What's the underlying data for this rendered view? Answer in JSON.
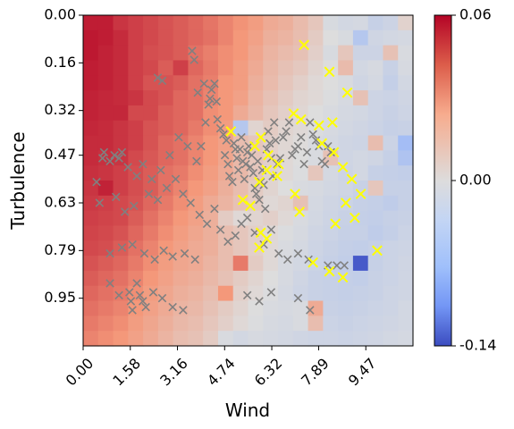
{
  "chart_data": {
    "type": "heatmap",
    "title": "",
    "xlabel": "Wind",
    "ylabel": "Turbulence",
    "xlim": [
      0,
      11.05
    ],
    "ylim": [
      0,
      1.11
    ],
    "x_tick_labels": [
      "0.00",
      "1.58",
      "3.16",
      "4.74",
      "6.32",
      "7.89",
      "9.47"
    ],
    "x_ticks": [
      0,
      1.58,
      3.16,
      4.74,
      6.32,
      7.89,
      9.47
    ],
    "y_tick_labels": [
      "0.00",
      "0.16",
      "0.32",
      "0.47",
      "0.63",
      "0.79",
      "0.95"
    ],
    "y_ticks": [
      0,
      0.16,
      0.32,
      0.47,
      0.63,
      0.79,
      0.95
    ],
    "y_inverted": true,
    "grid": false,
    "colormap": "coolwarm",
    "colorbar": {
      "min": -0.14,
      "max": 0.06,
      "center": 0.0,
      "tick_labels": [
        "0.06",
        "0.00",
        "-0.14"
      ],
      "ticks": [
        0.06,
        0.0,
        -0.14
      ]
    },
    "cells_rows": 22,
    "cells_cols": 22,
    "heatmap_values": [
      [
        0.055,
        0.055,
        0.05,
        0.048,
        0.046,
        0.044,
        0.042,
        0.04,
        0.037,
        0.034,
        0.031,
        0.028,
        0.022,
        0.02,
        0.015,
        0.01,
        -0.005,
        -0.01,
        -0.008,
        -0.02,
        -0.015,
        0.005
      ],
      [
        0.056,
        0.055,
        0.052,
        0.048,
        0.046,
        0.044,
        0.042,
        0.04,
        0.038,
        0.034,
        0.03,
        0.026,
        0.02,
        0.018,
        0.014,
        0.008,
        0.0,
        -0.005,
        -0.035,
        -0.012,
        -0.01,
        -0.008
      ],
      [
        0.056,
        0.054,
        0.052,
        0.048,
        0.045,
        0.044,
        0.042,
        0.038,
        0.035,
        0.032,
        0.03,
        0.024,
        0.018,
        0.015,
        0.012,
        0.006,
        -0.005,
        0.01,
        -0.015,
        -0.015,
        0.012,
        -0.004
      ],
      [
        0.055,
        0.054,
        0.052,
        0.048,
        0.046,
        0.042,
        0.048,
        0.04,
        0.036,
        0.032,
        0.028,
        0.022,
        0.016,
        0.012,
        0.009,
        0.004,
        0.0,
        0.015,
        -0.01,
        -0.006,
        -0.018,
        -0.006
      ],
      [
        0.055,
        0.054,
        0.052,
        0.048,
        0.044,
        0.044,
        0.042,
        0.038,
        0.035,
        0.03,
        0.028,
        0.02,
        0.015,
        0.01,
        0.006,
        0.002,
        0.0,
        -0.004,
        -0.012,
        -0.008,
        -0.022,
        -0.01
      ],
      [
        0.054,
        0.053,
        0.052,
        0.05,
        0.046,
        0.044,
        0.04,
        0.038,
        0.034,
        0.03,
        0.026,
        0.018,
        0.012,
        0.008,
        0.004,
        0.002,
        -0.002,
        -0.006,
        0.012,
        -0.014,
        -0.016,
        -0.012
      ],
      [
        0.054,
        0.053,
        0.053,
        0.046,
        0.046,
        0.042,
        0.04,
        0.038,
        0.032,
        0.03,
        0.022,
        0.016,
        0.01,
        0.006,
        0.003,
        0.0,
        -0.004,
        -0.008,
        -0.01,
        -0.014,
        -0.018,
        -0.014
      ],
      [
        0.053,
        0.052,
        0.05,
        0.048,
        0.044,
        0.042,
        0.04,
        0.036,
        0.032,
        0.028,
        -0.035,
        0.004,
        0.008,
        0.004,
        0.002,
        -0.002,
        -0.006,
        -0.01,
        -0.012,
        -0.016,
        -0.02,
        -0.018
      ],
      [
        0.052,
        0.052,
        0.05,
        0.048,
        0.044,
        0.04,
        0.038,
        0.034,
        0.03,
        0.026,
        0.014,
        0.01,
        0.006,
        0.003,
        0.001,
        -0.004,
        -0.008,
        -0.012,
        -0.014,
        0.014,
        -0.016,
        -0.05
      ],
      [
        0.052,
        0.051,
        0.05,
        0.046,
        0.043,
        0.04,
        0.038,
        0.034,
        0.03,
        0.024,
        0.016,
        0.01,
        0.006,
        0.002,
        0.0,
        -0.004,
        0.012,
        -0.012,
        -0.01,
        -0.012,
        -0.02,
        -0.04
      ],
      [
        0.051,
        0.05,
        0.048,
        0.045,
        0.042,
        0.038,
        0.036,
        0.032,
        0.028,
        0.022,
        0.016,
        0.01,
        0.004,
        0.002,
        -0.002,
        0.01,
        -0.008,
        -0.014,
        -0.01,
        -0.02,
        -0.022,
        -0.024
      ],
      [
        0.05,
        0.054,
        0.048,
        0.045,
        0.042,
        0.038,
        0.034,
        0.03,
        0.026,
        0.02,
        0.014,
        0.008,
        0.004,
        0.0,
        -0.004,
        -0.006,
        -0.01,
        -0.012,
        -0.018,
        0.01,
        -0.02,
        -0.02
      ],
      [
        0.049,
        0.048,
        0.046,
        0.044,
        0.04,
        0.036,
        0.032,
        0.028,
        0.022,
        0.018,
        0.012,
        0.008,
        0.002,
        0.004,
        0.012,
        -0.008,
        -0.012,
        -0.016,
        -0.02,
        -0.022,
        -0.026,
        -0.02
      ],
      [
        0.048,
        0.047,
        0.046,
        0.042,
        0.038,
        0.034,
        0.03,
        0.026,
        0.02,
        0.008,
        0.002,
        0.004,
        0.006,
        0.002,
        -0.004,
        -0.01,
        -0.014,
        -0.018,
        -0.022,
        -0.024,
        -0.02,
        -0.018
      ],
      [
        0.047,
        0.046,
        0.044,
        0.04,
        0.036,
        0.032,
        0.028,
        0.024,
        0.02,
        0.014,
        0.01,
        0.006,
        0.002,
        -0.002,
        -0.006,
        -0.012,
        -0.016,
        -0.02,
        -0.02,
        -0.026,
        -0.022,
        -0.016
      ],
      [
        0.046,
        0.045,
        0.042,
        0.038,
        0.034,
        0.03,
        0.026,
        0.022,
        0.02,
        0.014,
        0.01,
        0.006,
        0.002,
        -0.004,
        -0.008,
        -0.014,
        -0.018,
        -0.022,
        -0.024,
        -0.02,
        -0.016,
        -0.014
      ],
      [
        0.044,
        0.042,
        0.04,
        0.036,
        0.032,
        0.028,
        0.024,
        0.022,
        0.018,
        0.014,
        0.036,
        0.008,
        0.002,
        -0.006,
        -0.01,
        -0.016,
        -0.02,
        -0.024,
        -0.13,
        -0.02,
        -0.016,
        -0.012
      ],
      [
        0.042,
        0.04,
        0.038,
        0.034,
        0.03,
        0.026,
        0.022,
        0.02,
        0.016,
        0.012,
        0.008,
        0.004,
        0.0,
        -0.006,
        -0.012,
        -0.018,
        -0.02,
        -0.022,
        -0.024,
        -0.018,
        -0.016,
        -0.012
      ],
      [
        0.04,
        0.038,
        0.036,
        0.032,
        0.028,
        0.024,
        0.02,
        0.018,
        0.014,
        0.03,
        0.006,
        0.002,
        -0.002,
        -0.008,
        -0.014,
        -0.018,
        -0.02,
        -0.022,
        -0.02,
        -0.018,
        -0.014,
        -0.012
      ],
      [
        0.038,
        0.036,
        0.034,
        0.03,
        0.026,
        0.022,
        0.018,
        0.016,
        0.012,
        0.008,
        0.004,
        0.0,
        -0.004,
        -0.006,
        -0.004,
        0.022,
        -0.018,
        -0.02,
        -0.018,
        -0.016,
        -0.014,
        -0.01
      ],
      [
        0.036,
        0.034,
        0.032,
        0.028,
        0.024,
        0.02,
        0.016,
        0.014,
        0.01,
        0.006,
        0.002,
        -0.002,
        -0.006,
        -0.008,
        -0.004,
        0.014,
        -0.016,
        -0.018,
        -0.016,
        -0.014,
        -0.012,
        -0.01
      ],
      [
        0.034,
        0.032,
        0.03,
        0.026,
        0.022,
        0.018,
        0.014,
        0.012,
        0.008,
        -0.004,
        -0.01,
        -0.006,
        -0.008,
        -0.01,
        -0.012,
        -0.014,
        -0.014,
        -0.016,
        -0.014,
        -0.012,
        -0.01,
        -0.008
      ]
    ],
    "series": [
      {
        "marker": "x",
        "color": "#808080",
        "points": [
          [
            2.5,
            0.21
          ],
          [
            2.65,
            0.22
          ],
          [
            3.65,
            0.12
          ],
          [
            3.72,
            0.15
          ],
          [
            3.84,
            0.26
          ],
          [
            4.05,
            0.23
          ],
          [
            4.1,
            0.36
          ],
          [
            4.2,
            0.3
          ],
          [
            4.25,
            0.28
          ],
          [
            4.3,
            0.25
          ],
          [
            4.4,
            0.23
          ],
          [
            4.47,
            0.29
          ],
          [
            4.5,
            0.35
          ],
          [
            4.6,
            0.38
          ],
          [
            4.7,
            0.4
          ],
          [
            4.75,
            0.47
          ],
          [
            4.8,
            0.42
          ],
          [
            4.85,
            0.5
          ],
          [
            4.9,
            0.54
          ],
          [
            5.0,
            0.56
          ],
          [
            5.05,
            0.43
          ],
          [
            5.1,
            0.45
          ],
          [
            5.15,
            0.48
          ],
          [
            5.2,
            0.52
          ],
          [
            5.25,
            0.45
          ],
          [
            5.3,
            0.41
          ],
          [
            5.35,
            0.49
          ],
          [
            5.4,
            0.55
          ],
          [
            5.45,
            0.5
          ],
          [
            5.5,
            0.46
          ],
          [
            5.55,
            0.44
          ],
          [
            5.6,
            0.51
          ],
          [
            5.65,
            0.47
          ],
          [
            5.7,
            0.53
          ],
          [
            5.75,
            0.58
          ],
          [
            5.8,
            0.6
          ],
          [
            5.85,
            0.49
          ],
          [
            5.9,
            0.62
          ],
          [
            5.95,
            0.56
          ],
          [
            6.0,
            0.52
          ],
          [
            6.05,
            0.57
          ],
          [
            6.1,
            0.65
          ],
          [
            6.15,
            0.45
          ],
          [
            6.2,
            0.39
          ],
          [
            6.25,
            0.43
          ],
          [
            6.3,
            0.48
          ],
          [
            6.35,
            0.54
          ],
          [
            6.4,
            0.36
          ],
          [
            6.45,
            0.42
          ],
          [
            6.5,
            0.5
          ],
          [
            6.6,
            0.48
          ],
          [
            6.7,
            0.41
          ],
          [
            6.8,
            0.39
          ],
          [
            6.9,
            0.36
          ],
          [
            7.0,
            0.47
          ],
          [
            7.1,
            0.45
          ],
          [
            7.2,
            0.44
          ],
          [
            7.3,
            0.41
          ],
          [
            7.4,
            0.5
          ],
          [
            7.5,
            0.46
          ],
          [
            7.6,
            0.36
          ],
          [
            7.7,
            0.4
          ],
          [
            7.8,
            0.42
          ],
          [
            7.9,
            0.44
          ],
          [
            8.0,
            0.49
          ],
          [
            8.1,
            0.5
          ],
          [
            8.2,
            0.44
          ],
          [
            8.3,
            0.46
          ],
          [
            3.8,
            0.49
          ],
          [
            3.95,
            0.44
          ],
          [
            3.5,
            0.44
          ],
          [
            3.2,
            0.41
          ],
          [
            2.9,
            0.47
          ],
          [
            2.6,
            0.52
          ],
          [
            2.3,
            0.55
          ],
          [
            2.0,
            0.5
          ],
          [
            1.8,
            0.54
          ],
          [
            1.5,
            0.51
          ],
          [
            1.3,
            0.46
          ],
          [
            1.05,
            0.47
          ],
          [
            0.65,
            0.48
          ],
          [
            0.7,
            0.46
          ],
          [
            0.9,
            0.49
          ],
          [
            1.2,
            0.48
          ],
          [
            0.45,
            0.56
          ],
          [
            0.55,
            0.63
          ],
          [
            1.1,
            0.61
          ],
          [
            1.4,
            0.66
          ],
          [
            1.7,
            0.64
          ],
          [
            2.2,
            0.6
          ],
          [
            2.5,
            0.62
          ],
          [
            2.8,
            0.58
          ],
          [
            3.1,
            0.55
          ],
          [
            3.35,
            0.6
          ],
          [
            3.6,
            0.63
          ],
          [
            3.9,
            0.67
          ],
          [
            4.15,
            0.7
          ],
          [
            4.4,
            0.65
          ],
          [
            4.6,
            0.72
          ],
          [
            4.85,
            0.76
          ],
          [
            5.1,
            0.74
          ],
          [
            5.3,
            0.7
          ],
          [
            5.5,
            0.68
          ],
          [
            5.75,
            0.73
          ],
          [
            6.05,
            0.77
          ],
          [
            6.3,
            0.72
          ],
          [
            6.55,
            0.8
          ],
          [
            6.85,
            0.82
          ],
          [
            7.2,
            0.8
          ],
          [
            7.55,
            0.82
          ],
          [
            8.2,
            0.84
          ],
          [
            8.5,
            0.84
          ],
          [
            8.75,
            0.84
          ],
          [
            0.9,
            0.8
          ],
          [
            1.3,
            0.78
          ],
          [
            1.65,
            0.77
          ],
          [
            2.05,
            0.8
          ],
          [
            2.4,
            0.82
          ],
          [
            2.7,
            0.79
          ],
          [
            3.0,
            0.81
          ],
          [
            3.4,
            0.8
          ],
          [
            3.75,
            0.82
          ],
          [
            0.9,
            0.9
          ],
          [
            1.2,
            0.94
          ],
          [
            1.6,
            0.96
          ],
          [
            1.9,
            0.94
          ],
          [
            2.1,
            0.98
          ],
          [
            2.35,
            0.93
          ],
          [
            2.65,
            0.95
          ],
          [
            3.0,
            0.98
          ],
          [
            3.35,
            0.99
          ],
          [
            5.5,
            0.94
          ],
          [
            5.9,
            0.96
          ],
          [
            6.3,
            0.93
          ],
          [
            7.2,
            0.95
          ],
          [
            7.6,
            0.99
          ],
          [
            1.65,
            0.99
          ],
          [
            2.0,
            0.96
          ],
          [
            1.55,
            0.93
          ],
          [
            1.8,
            0.9
          ]
        ]
      },
      {
        "marker": "x",
        "color": "#ffff00",
        "points": [
          [
            7.4,
            0.1
          ],
          [
            8.25,
            0.19
          ],
          [
            8.85,
            0.26
          ],
          [
            7.05,
            0.33
          ],
          [
            7.3,
            0.35
          ],
          [
            7.9,
            0.37
          ],
          [
            4.95,
            0.39
          ],
          [
            5.75,
            0.44
          ],
          [
            8.35,
            0.36
          ],
          [
            8.0,
            0.43
          ],
          [
            5.95,
            0.41
          ],
          [
            6.2,
            0.47
          ],
          [
            6.15,
            0.52
          ],
          [
            6.55,
            0.5
          ],
          [
            8.4,
            0.46
          ],
          [
            8.7,
            0.51
          ],
          [
            9.0,
            0.55
          ],
          [
            9.3,
            0.6
          ],
          [
            5.9,
            0.56
          ],
          [
            6.5,
            0.54
          ],
          [
            7.1,
            0.6
          ],
          [
            5.35,
            0.62
          ],
          [
            5.6,
            0.64
          ],
          [
            7.25,
            0.66
          ],
          [
            8.8,
            0.63
          ],
          [
            9.1,
            0.68
          ],
          [
            8.45,
            0.7
          ],
          [
            5.95,
            0.73
          ],
          [
            6.15,
            0.75
          ],
          [
            5.9,
            0.78
          ],
          [
            7.7,
            0.83
          ],
          [
            9.85,
            0.79
          ],
          [
            8.25,
            0.86
          ],
          [
            8.7,
            0.88
          ]
        ]
      }
    ]
  }
}
